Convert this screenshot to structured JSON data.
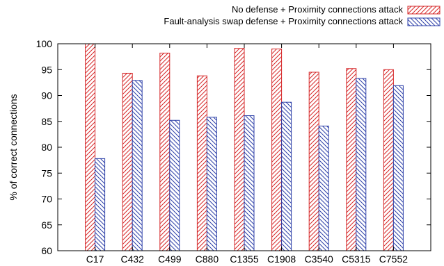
{
  "chart_data": {
    "type": "bar",
    "categories": [
      "C17",
      "C432",
      "C499",
      "C880",
      "C1355",
      "C1908",
      "C3540",
      "C5315",
      "C7552"
    ],
    "series": [
      {
        "name": "No defense + Proximity connections attack",
        "values": [
          100,
          94.3,
          98.2,
          93.8,
          99.1,
          99.0,
          94.5,
          95.2,
          95.0
        ],
        "color": "#d62728",
        "pattern": "hatch-forward"
      },
      {
        "name": "Fault-analysis swap defense + Proximity connections attack",
        "values": [
          77.8,
          92.9,
          85.2,
          85.8,
          86.1,
          88.7,
          84.1,
          93.3,
          91.9
        ],
        "color": "#2c3fa8",
        "pattern": "hatch-backward"
      }
    ],
    "title": "",
    "xlabel": "",
    "ylabel": "% of correct connections",
    "ylim": [
      60,
      100
    ],
    "yticks": [
      60,
      65,
      70,
      75,
      80,
      85,
      90,
      95,
      100
    ],
    "grid": false,
    "legend_position": "top-right"
  }
}
